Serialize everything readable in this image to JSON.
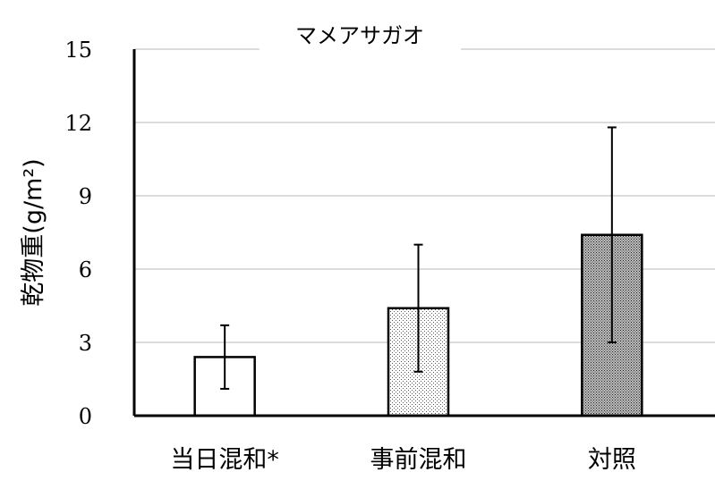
{
  "chart_data": {
    "type": "bar",
    "title": "マメアサガオ",
    "ylabel": "乾物重(g/m²)",
    "xlabel": "",
    "categories": [
      "当日混和*",
      "事前混和",
      "対照"
    ],
    "values": [
      2.4,
      4.4,
      7.4
    ],
    "error_low": [
      1.1,
      1.8,
      3.0
    ],
    "error_high": [
      3.7,
      7.0,
      11.8
    ],
    "ylim": [
      0,
      15
    ],
    "yticks": [
      "0",
      "3",
      "6",
      "9",
      "12",
      "15"
    ],
    "grid": true,
    "bar_patterns": [
      "white",
      "light-dots",
      "dense-dots"
    ]
  }
}
